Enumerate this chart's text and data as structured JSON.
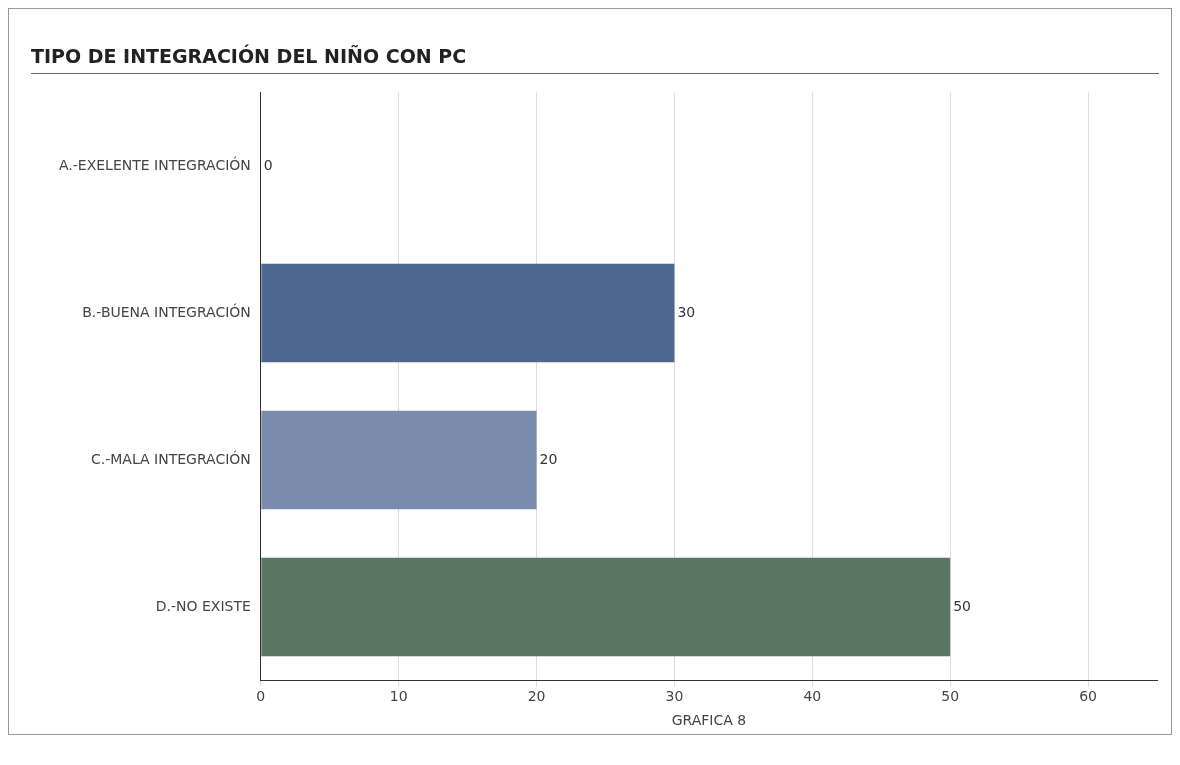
{
  "chart_data": {
    "type": "bar",
    "orientation": "horizontal",
    "title": "TIPO DE INTEGRACIÓN DEL NIÑO CON PC",
    "xlabel": "GRAFICA 8",
    "categories": [
      "A.-EXELENTE INTEGRACIÓN",
      "B.-BUENA INTEGRACIÓN",
      "C.-MALA INTEGRACIÓN",
      "D.-NO EXISTE"
    ],
    "values": [
      0,
      30,
      20,
      50
    ],
    "colors": [
      "#4e6892",
      "#4e6892",
      "#7a8bae",
      "#5a7562"
    ],
    "xlim": [
      0,
      65
    ],
    "xticks": [
      0,
      10,
      20,
      30,
      40,
      50,
      60
    ],
    "grid": "x",
    "data_labels": true,
    "legend": false
  }
}
